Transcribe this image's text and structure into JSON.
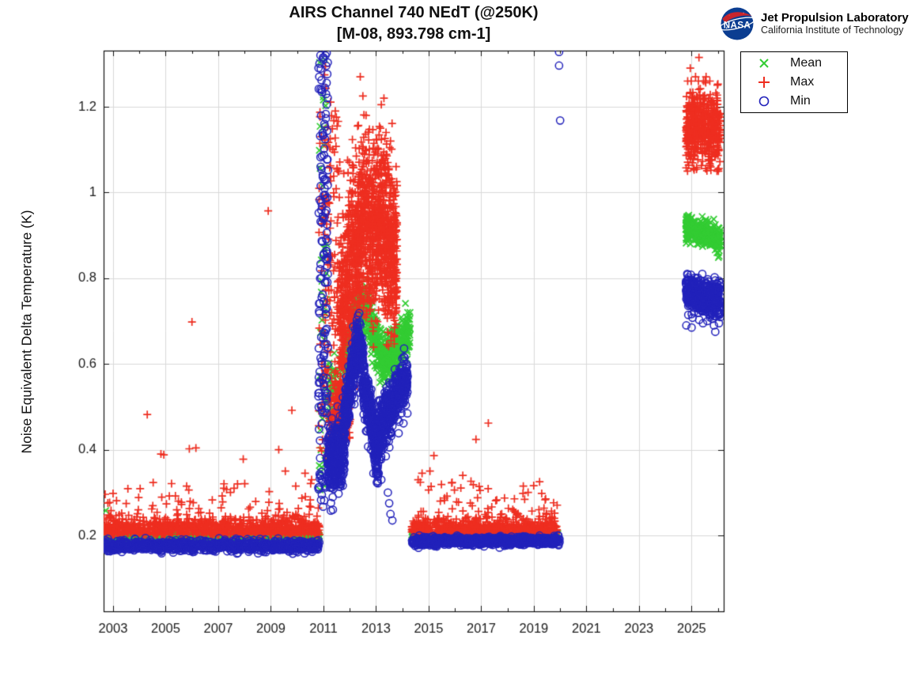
{
  "header": {
    "title": "AIRS Channel 740 NEdT (@250K)",
    "subtitle": "[M-08, 893.798 cm-1]"
  },
  "branding": {
    "logo_text": "NASA",
    "line1": "Jet Propulsion Laboratory",
    "line2": "California Institute of Technology"
  },
  "legend": {
    "items": [
      {
        "label": "Mean",
        "marker": "x"
      },
      {
        "label": "Max",
        "marker": "plus"
      },
      {
        "label": "Min",
        "marker": "circle"
      }
    ]
  },
  "chart_data": {
    "type": "scatter",
    "title": "AIRS Channel 740 NEdT (@250K)",
    "subtitle": "[M-08, 893.798 cm-1]",
    "xlabel": "",
    "ylabel": "Noise Equivalent Delta Temperature (K)",
    "xlim": [
      2002.64,
      2026.22
    ],
    "ylim": [
      0.0229,
      1.331
    ],
    "xticks": [
      2003,
      2005,
      2007,
      2009,
      2011,
      2013,
      2015,
      2017,
      2019,
      2021,
      2023,
      2025
    ],
    "xtick_minor_step": 1,
    "yticks": [
      0.2,
      0.4,
      0.6,
      0.8,
      1.0,
      1.2
    ],
    "ytick_labels": [
      "0.2",
      "0.4",
      "0.6",
      "0.8",
      "1",
      "1.2"
    ],
    "grid": true,
    "grid_color": "#d9d9d9",
    "axis_color": "#111111",
    "series": [
      {
        "name": "Mean",
        "marker": "x",
        "color": "#33cc33",
        "segments": [
          {
            "type": "band",
            "x0": 2002.64,
            "x1": 2010.85,
            "n": 750,
            "yc": 0.197,
            "ys": 0.0026
          },
          {
            "type": "points",
            "pts": [
              [
                2002.72,
                0.258
              ]
            ]
          },
          {
            "type": "column",
            "x0": 2010.82,
            "x1": 2011.15,
            "y0": 0.3,
            "y1": 1.325,
            "n": 45
          },
          {
            "type": "band",
            "x0": 2011.15,
            "x1": 2011.78,
            "n": 80,
            "yc": 0.52,
            "ys": 0.055
          },
          {
            "type": "curve",
            "n": 650,
            "ys": 0.028,
            "pts": [
              [
                2011.8,
                0.585
              ],
              [
                2012.2,
                0.7
              ],
              [
                2012.6,
                0.735
              ],
              [
                2012.95,
                0.66
              ],
              [
                2013.25,
                0.605
              ],
              [
                2013.7,
                0.63
              ],
              [
                2014.3,
                0.685
              ]
            ]
          },
          {
            "type": "band",
            "x0": 2014.35,
            "x1": 2019.95,
            "n": 600,
            "yc": 0.2,
            "ys": 0.0026
          },
          {
            "type": "curve",
            "n": 380,
            "ys": 0.014,
            "pts": [
              [
                2024.78,
                0.92
              ],
              [
                2025.4,
                0.905
              ],
              [
                2026.1,
                0.89
              ]
            ]
          }
        ]
      },
      {
        "name": "Max",
        "marker": "plus",
        "color": "#ee2e20",
        "segments": [
          {
            "type": "band",
            "x0": 2002.64,
            "x1": 2010.85,
            "n": 850,
            "yc": 0.216,
            "ys": 0.011,
            "clip": [
              0.202,
              0.252
            ]
          },
          {
            "type": "upow",
            "x0": 2002.64,
            "x1": 2010.85,
            "y0": 0.236,
            "y1": 0.325,
            "n": 110,
            "pow": 2
          },
          {
            "type": "points",
            "pts": [
              [
                2002.7,
                0.296
              ],
              [
                2003.0,
                0.298
              ],
              [
                2004.3,
                0.482
              ],
              [
                2004.82,
                0.39
              ],
              [
                2004.93,
                0.388
              ],
              [
                2005.9,
                0.402
              ],
              [
                2006.0,
                0.698
              ],
              [
                2006.15,
                0.404
              ],
              [
                2007.6,
                0.31
              ],
              [
                2007.95,
                0.378
              ],
              [
                2008.9,
                0.957
              ],
              [
                2009.3,
                0.4
              ],
              [
                2009.55,
                0.35
              ],
              [
                2009.8,
                0.492
              ],
              [
                2010.3,
                0.345
              ],
              [
                2010.55,
                0.33
              ]
            ]
          },
          {
            "type": "column",
            "x0": 2010.82,
            "x1": 2011.15,
            "y0": 0.28,
            "y1": 1.3,
            "n": 55
          },
          {
            "type": "curve",
            "n": 200,
            "ys": 0.04,
            "pts": [
              [
                2011.2,
                0.46
              ],
              [
                2011.6,
                0.5
              ],
              [
                2012.0,
                0.47
              ]
            ]
          },
          {
            "type": "column",
            "x0": 2011.12,
            "x1": 2011.62,
            "y0": 0.55,
            "y1": 1.22,
            "n": 90
          },
          {
            "type": "curve",
            "n": 1500,
            "ys": 0.105,
            "pts": [
              [
                2011.6,
                0.66
              ],
              [
                2011.95,
                0.78
              ],
              [
                2012.3,
                0.88
              ],
              [
                2012.6,
                0.93
              ],
              [
                2012.9,
                0.92
              ],
              [
                2013.1,
                0.94
              ],
              [
                2013.35,
                0.9
              ],
              [
                2013.6,
                0.87
              ],
              [
                2013.8,
                0.84
              ]
            ]
          },
          {
            "type": "points",
            "pts": [
              [
                2012.4,
                1.27
              ],
              [
                2012.5,
                1.225
              ],
              [
                2012.62,
                1.18
              ],
              [
                2012.3,
                1.155
              ],
              [
                2013.2,
                1.205
              ],
              [
                2013.3,
                1.22
              ],
              [
                2013.38,
                1.14
              ],
              [
                2011.45,
                1.19
              ],
              [
                2011.52,
                1.155
              ],
              [
                2011.35,
                1.1
              ],
              [
                2013.55,
                1.12
              ]
            ]
          },
          {
            "type": "band",
            "x0": 2014.35,
            "x1": 2019.9,
            "n": 620,
            "yc": 0.216,
            "ys": 0.01,
            "clip": [
              0.203,
              0.25
            ]
          },
          {
            "type": "upow",
            "x0": 2014.35,
            "x1": 2019.9,
            "y0": 0.238,
            "y1": 0.33,
            "n": 80,
            "pow": 2
          },
          {
            "type": "points",
            "pts": [
              [
                2015.2,
                0.386
              ],
              [
                2015.05,
                0.35
              ],
              [
                2016.8,
                0.424
              ],
              [
                2017.27,
                0.462
              ],
              [
                2019.3,
                0.298
              ],
              [
                2016.3,
                0.34
              ],
              [
                2018.6,
                0.315
              ],
              [
                2014.75,
                0.345
              ],
              [
                2014.6,
                0.33
              ]
            ]
          },
          {
            "type": "curve",
            "n": 520,
            "ys": 0.045,
            "clip": [
              1.05,
              1.26
            ],
            "pts": [
              [
                2024.78,
                1.14
              ],
              [
                2025.3,
                1.16
              ],
              [
                2026.1,
                1.14
              ]
            ]
          },
          {
            "type": "points",
            "pts": [
              [
                2025.28,
                1.315
              ],
              [
                2024.95,
                1.29
              ],
              [
                2025.15,
                1.27
              ],
              [
                2025.55,
                1.27
              ],
              [
                2024.85,
                1.26
              ]
            ]
          }
        ]
      },
      {
        "name": "Min",
        "marker": "circle",
        "color": "#2222bb",
        "segments": [
          {
            "type": "band",
            "x0": 2002.64,
            "x1": 2010.85,
            "n": 900,
            "yc": 0.176,
            "ys": 0.0065
          },
          {
            "type": "column",
            "x0": 2010.8,
            "x1": 2011.18,
            "y0": 0.26,
            "y1": 1.33,
            "n": 170
          },
          {
            "type": "curve",
            "n": 320,
            "ys": 0.045,
            "pts": [
              [
                2011.18,
                0.37
              ],
              [
                2011.5,
                0.38
              ],
              [
                2011.8,
                0.4
              ]
            ]
          },
          {
            "type": "curve",
            "n": 330,
            "ys": 0.032,
            "pts": [
              [
                2011.78,
                0.46
              ],
              [
                2012.0,
                0.545
              ],
              [
                2012.3,
                0.655
              ],
              [
                2012.5,
                0.6
              ]
            ]
          },
          {
            "type": "curve",
            "n": 280,
            "ys": 0.03,
            "pts": [
              [
                2012.5,
                0.56
              ],
              [
                2012.75,
                0.5
              ],
              [
                2012.95,
                0.43
              ],
              [
                2013.08,
                0.365
              ]
            ]
          },
          {
            "type": "curve",
            "n": 260,
            "ys": 0.032,
            "pts": [
              [
                2013.08,
                0.43
              ],
              [
                2013.3,
                0.47
              ],
              [
                2013.55,
                0.5
              ]
            ]
          },
          {
            "type": "curve",
            "n": 260,
            "ys": 0.028,
            "pts": [
              [
                2013.55,
                0.49
              ],
              [
                2013.85,
                0.53
              ],
              [
                2014.2,
                0.565
              ]
            ]
          },
          {
            "type": "points",
            "pts": [
              [
                2013.1,
                0.345
              ],
              [
                2013.2,
                0.33
              ],
              [
                2013.45,
                0.3
              ],
              [
                2013.5,
                0.275
              ],
              [
                2013.55,
                0.25
              ],
              [
                2013.62,
                0.235
              ],
              [
                2013.3,
                0.415
              ],
              [
                2012.9,
                0.345
              ],
              [
                2013.0,
                0.35
              ]
            ]
          },
          {
            "type": "band",
            "x0": 2014.35,
            "x1": 2020.0,
            "n": 820,
            "yc": 0.187,
            "ys": 0.005
          },
          {
            "type": "points",
            "pts": [
              [
                2019.96,
                1.328
              ],
              [
                2019.96,
                1.296
              ],
              [
                2020.0,
                1.168
              ]
            ]
          },
          {
            "type": "curve",
            "n": 470,
            "ys": 0.02,
            "clip": [
              0.695,
              0.81
            ],
            "pts": [
              [
                2024.78,
                0.765
              ],
              [
                2025.4,
                0.755
              ],
              [
                2026.1,
                0.75
              ]
            ]
          },
          {
            "type": "points",
            "pts": [
              [
                2024.8,
                0.69
              ],
              [
                2025.0,
                0.685
              ],
              [
                2025.6,
                0.7
              ],
              [
                2025.9,
                0.675
              ],
              [
                2026.05,
                0.72
              ],
              [
                2025.85,
                0.69
              ]
            ]
          }
        ]
      }
    ]
  }
}
